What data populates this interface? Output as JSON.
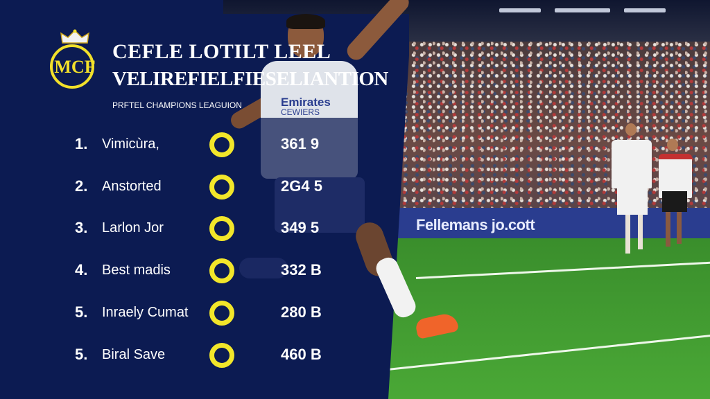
{
  "header": {
    "title_line1": "CEFLE LOTILT LEEL",
    "title_line2": "VELIREFIELFIESELIANTION",
    "subtitle": "PRFTEL CHAMPIONS LEAGUION"
  },
  "crest": {
    "monogram": "MCF"
  },
  "sponsor": {
    "main": "Emirates",
    "sub": "CEWIERS"
  },
  "advertising_board": "Fellemans jo.cott",
  "rankings": [
    {
      "rank": "1.",
      "name": "Vimicùra,",
      "score": "361 9"
    },
    {
      "rank": "2.",
      "name": "Anstorted",
      "score": "2G4 5"
    },
    {
      "rank": "3.",
      "name": "Larlon Jor",
      "score": "349 5"
    },
    {
      "rank": "4.",
      "name": "Best madis",
      "score": "332 B"
    },
    {
      "rank": "5.",
      "name": "Inraely Cumat",
      "score": "280 B"
    },
    {
      "rank": "5.",
      "name": "Biral Save",
      "score": "460 B"
    }
  ],
  "colors": {
    "panel": "#0c1b52",
    "accent": "#f2e62a",
    "text": "#ffffff"
  }
}
